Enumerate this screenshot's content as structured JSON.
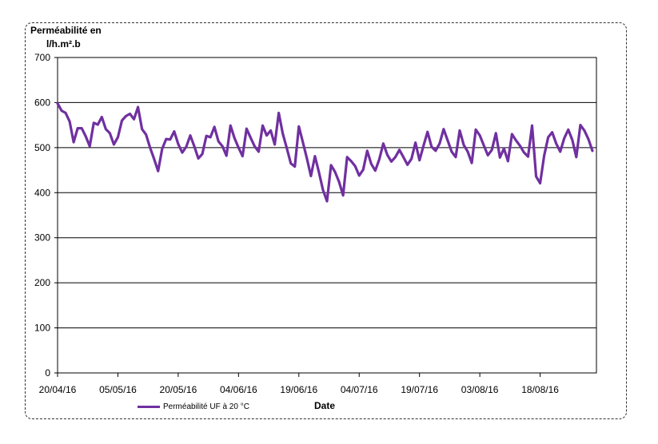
{
  "chart_data": {
    "type": "line",
    "ylabel_line1": "Perméabilité en",
    "ylabel_line2": "l/h.m².b",
    "xlabel": "Date",
    "ylim": [
      0,
      700
    ],
    "yticks": [
      0,
      100,
      200,
      300,
      400,
      500,
      600,
      700
    ],
    "xticks": [
      {
        "date": "2016-04-20",
        "label": "20/04/16"
      },
      {
        "date": "2016-05-05",
        "label": "05/05/16"
      },
      {
        "date": "2016-05-20",
        "label": "20/05/16"
      },
      {
        "date": "2016-06-04",
        "label": "04/06/16"
      },
      {
        "date": "2016-06-19",
        "label": "19/06/16"
      },
      {
        "date": "2016-07-04",
        "label": "04/07/16"
      },
      {
        "date": "2016-07-19",
        "label": "19/07/16"
      },
      {
        "date": "2016-08-03",
        "label": "03/08/16"
      },
      {
        "date": "2016-08-18",
        "label": "18/08/16"
      }
    ],
    "xlim": [
      "2016-04-20",
      "2016-09-01"
    ],
    "grid": "horizontal",
    "legend_position": "bottom-left",
    "series": [
      {
        "name": "Perméabilité UF à 20 °C",
        "color": "#7030A0",
        "points": [
          [
            "2016-04-20",
            598
          ],
          [
            "2016-04-21",
            582
          ],
          [
            "2016-04-22",
            577
          ],
          [
            "2016-04-23",
            558
          ],
          [
            "2016-04-24",
            512
          ],
          [
            "2016-04-25",
            543
          ],
          [
            "2016-04-26",
            543
          ],
          [
            "2016-04-27",
            525
          ],
          [
            "2016-04-28",
            503
          ],
          [
            "2016-04-29",
            555
          ],
          [
            "2016-04-30",
            551
          ],
          [
            "2016-05-01",
            568
          ],
          [
            "2016-05-02",
            541
          ],
          [
            "2016-05-03",
            532
          ],
          [
            "2016-05-04",
            507
          ],
          [
            "2016-05-05",
            523
          ],
          [
            "2016-05-06",
            560
          ],
          [
            "2016-05-07",
            570
          ],
          [
            "2016-05-08",
            575
          ],
          [
            "2016-05-09",
            563
          ],
          [
            "2016-05-10",
            590
          ],
          [
            "2016-05-11",
            541
          ],
          [
            "2016-05-12",
            529
          ],
          [
            "2016-05-13",
            500
          ],
          [
            "2016-05-14",
            475
          ],
          [
            "2016-05-15",
            448
          ],
          [
            "2016-05-16",
            497
          ],
          [
            "2016-05-17",
            519
          ],
          [
            "2016-05-18",
            518
          ],
          [
            "2016-05-19",
            536
          ],
          [
            "2016-05-20",
            508
          ],
          [
            "2016-05-21",
            489
          ],
          [
            "2016-05-22",
            502
          ],
          [
            "2016-05-23",
            527
          ],
          [
            "2016-05-24",
            503
          ],
          [
            "2016-05-25",
            476
          ],
          [
            "2016-05-26",
            486
          ],
          [
            "2016-05-27",
            526
          ],
          [
            "2016-05-28",
            523
          ],
          [
            "2016-05-29",
            546
          ],
          [
            "2016-05-30",
            514
          ],
          [
            "2016-05-31",
            503
          ],
          [
            "2016-06-01",
            482
          ],
          [
            "2016-06-02",
            549
          ],
          [
            "2016-06-03",
            521
          ],
          [
            "2016-06-04",
            500
          ],
          [
            "2016-06-05",
            481
          ],
          [
            "2016-06-06",
            542
          ],
          [
            "2016-06-07",
            522
          ],
          [
            "2016-06-08",
            503
          ],
          [
            "2016-06-09",
            491
          ],
          [
            "2016-06-10",
            549
          ],
          [
            "2016-06-11",
            527
          ],
          [
            "2016-06-12",
            538
          ],
          [
            "2016-06-13",
            507
          ],
          [
            "2016-06-14",
            577
          ],
          [
            "2016-06-15",
            531
          ],
          [
            "2016-06-16",
            499
          ],
          [
            "2016-06-17",
            465
          ],
          [
            "2016-06-18",
            458
          ],
          [
            "2016-06-19",
            547
          ],
          [
            "2016-06-20",
            512
          ],
          [
            "2016-06-21",
            476
          ],
          [
            "2016-06-22",
            437
          ],
          [
            "2016-06-23",
            481
          ],
          [
            "2016-06-24",
            445
          ],
          [
            "2016-06-25",
            406
          ],
          [
            "2016-06-26",
            381
          ],
          [
            "2016-06-27",
            461
          ],
          [
            "2016-06-28",
            446
          ],
          [
            "2016-06-29",
            424
          ],
          [
            "2016-06-30",
            394
          ],
          [
            "2016-07-01",
            479
          ],
          [
            "2016-07-02",
            470
          ],
          [
            "2016-07-03",
            459
          ],
          [
            "2016-07-04",
            438
          ],
          [
            "2016-07-05",
            451
          ],
          [
            "2016-07-06",
            493
          ],
          [
            "2016-07-07",
            464
          ],
          [
            "2016-07-08",
            449
          ],
          [
            "2016-07-09",
            474
          ],
          [
            "2016-07-10",
            509
          ],
          [
            "2016-07-11",
            484
          ],
          [
            "2016-07-12",
            469
          ],
          [
            "2016-07-13",
            479
          ],
          [
            "2016-07-14",
            495
          ],
          [
            "2016-07-15",
            479
          ],
          [
            "2016-07-16",
            462
          ],
          [
            "2016-07-17",
            475
          ],
          [
            "2016-07-18",
            511
          ],
          [
            "2016-07-19",
            472
          ],
          [
            "2016-07-20",
            504
          ],
          [
            "2016-07-21",
            535
          ],
          [
            "2016-07-22",
            502
          ],
          [
            "2016-07-23",
            493
          ],
          [
            "2016-07-24",
            509
          ],
          [
            "2016-07-25",
            541
          ],
          [
            "2016-07-26",
            516
          ],
          [
            "2016-07-27",
            491
          ],
          [
            "2016-07-28",
            479
          ],
          [
            "2016-07-29",
            538
          ],
          [
            "2016-07-30",
            506
          ],
          [
            "2016-07-31",
            491
          ],
          [
            "2016-08-01",
            466
          ],
          [
            "2016-08-02",
            540
          ],
          [
            "2016-08-03",
            527
          ],
          [
            "2016-08-04",
            505
          ],
          [
            "2016-08-05",
            483
          ],
          [
            "2016-08-06",
            495
          ],
          [
            "2016-08-07",
            532
          ],
          [
            "2016-08-08",
            478
          ],
          [
            "2016-08-09",
            498
          ],
          [
            "2016-08-10",
            470
          ],
          [
            "2016-08-11",
            530
          ],
          [
            "2016-08-12",
            516
          ],
          [
            "2016-08-13",
            504
          ],
          [
            "2016-08-14",
            489
          ],
          [
            "2016-08-15",
            480
          ],
          [
            "2016-08-16",
            549
          ],
          [
            "2016-08-17",
            436
          ],
          [
            "2016-08-18",
            421
          ],
          [
            "2016-08-19",
            482
          ],
          [
            "2016-08-20",
            523
          ],
          [
            "2016-08-21",
            534
          ],
          [
            "2016-08-22",
            509
          ],
          [
            "2016-08-23",
            491
          ],
          [
            "2016-08-24",
            521
          ],
          [
            "2016-08-25",
            540
          ],
          [
            "2016-08-26",
            517
          ],
          [
            "2016-08-27",
            479
          ],
          [
            "2016-08-28",
            550
          ],
          [
            "2016-08-29",
            538
          ],
          [
            "2016-08-30",
            519
          ],
          [
            "2016-08-31",
            493
          ]
        ]
      }
    ]
  }
}
